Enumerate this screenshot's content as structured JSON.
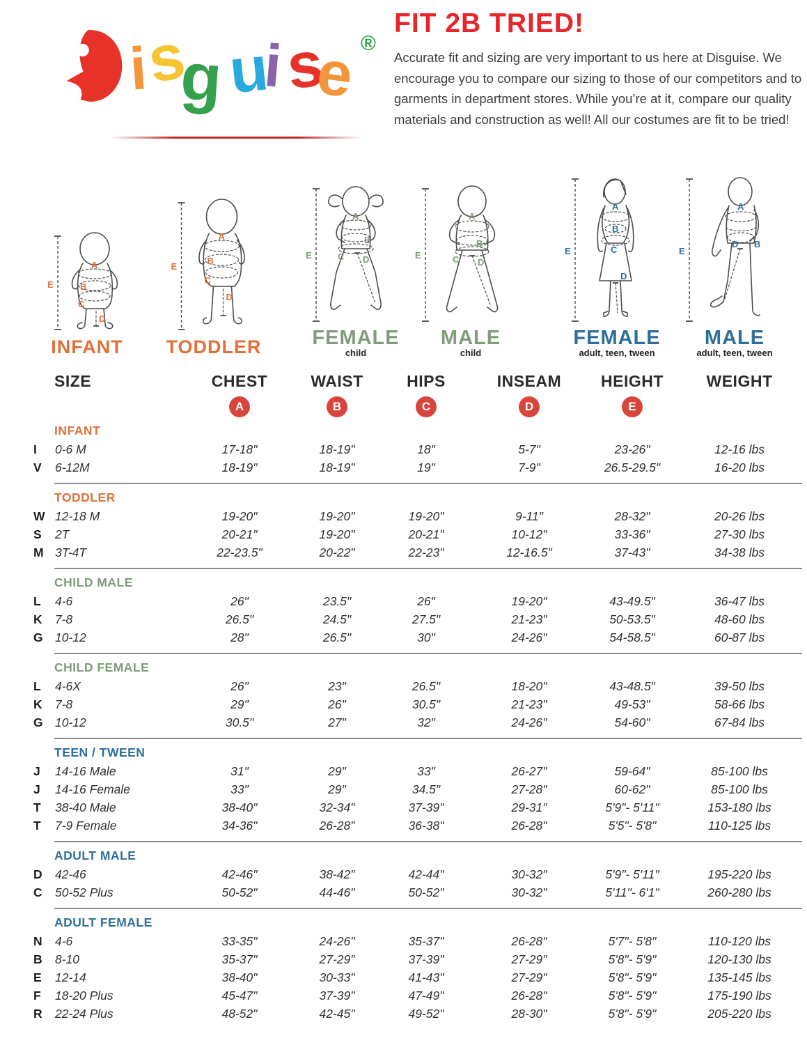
{
  "logo": {
    "letters": [
      {
        "ch": "D",
        "color": "#e63229"
      },
      {
        "ch": "i",
        "color": "#f2953b"
      },
      {
        "ch": "s",
        "color": "#f4c431"
      },
      {
        "ch": "g",
        "color": "#36a14c"
      },
      {
        "ch": "u",
        "color": "#2aa9e0"
      },
      {
        "ch": "i",
        "color": "#8a63ac"
      },
      {
        "ch": "s",
        "color": "#e63229"
      },
      {
        "ch": "e",
        "color": "#f2953b"
      }
    ],
    "registered": {
      "ch": "®",
      "color": "#36a14c"
    }
  },
  "intro": {
    "heading": "FIT 2B TRIED!",
    "heading_color": "#e8252b",
    "body": "Accurate fit and sizing are very important to us here at Disguise. We encourage you to compare our sizing to those of our competitors and to garments in department stores. While you’re at it, compare our quality materials and construction as well! All our costumes are fit to be tried!"
  },
  "figures": {
    "letters": {
      "a": "A",
      "b": "B",
      "c": "C",
      "d": "D",
      "e": "E"
    },
    "items": [
      {
        "name": "INFANT",
        "sub": "",
        "color": "#e0713a"
      },
      {
        "name": "TODDLER",
        "sub": "",
        "color": "#e0713a"
      },
      {
        "name": "FEMALE",
        "sub": "child",
        "color": "#7e9d78"
      },
      {
        "name": "MALE",
        "sub": "child",
        "color": "#7e9d78"
      },
      {
        "name": "FEMALE",
        "sub": "adult, teen, tween",
        "color": "#2e6f99"
      },
      {
        "name": "MALE",
        "sub": "adult, teen, tween",
        "color": "#2e6f99"
      }
    ]
  },
  "table": {
    "headers": [
      "SIZE",
      "CHEST",
      "WAIST",
      "HIPS",
      "INSEAM",
      "HEIGHT",
      "WEIGHT"
    ],
    "badges": [
      "A",
      "B",
      "C",
      "D",
      "E"
    ],
    "badge_color": "#d8453c",
    "sections": [
      {
        "heading": "INFANT",
        "color": "#e0713a",
        "rows": [
          [
            "I",
            "0-6 M",
            "17-18\"",
            "18-19\"",
            "18\"",
            "5-7\"",
            "23-26\"",
            "12-16 lbs"
          ],
          [
            "V",
            "6-12M",
            "18-19\"",
            "18-19\"",
            "19\"",
            "7-9\"",
            "26.5-29.5\"",
            "16-20 lbs"
          ]
        ]
      },
      {
        "heading": "TODDLER",
        "color": "#e0713a",
        "rows": [
          [
            "W",
            "12-18 M",
            "19-20\"",
            "19-20\"",
            "19-20\"",
            "9-11\"",
            "28-32\"",
            "20-26 lbs"
          ],
          [
            "S",
            "2T",
            "20-21\"",
            "19-20\"",
            "20-21\"",
            "10-12\"",
            "33-36\"",
            "27-30 lbs"
          ],
          [
            "M",
            "3T-4T",
            "22-23.5\"",
            "20-22\"",
            "22-23\"",
            "12-16.5\"",
            "37-43\"",
            "34-38 lbs"
          ]
        ]
      },
      {
        "heading": "CHILD MALE",
        "color": "#7e9d78",
        "rows": [
          [
            "L",
            "4-6",
            "26\"",
            "23.5\"",
            "26\"",
            "19-20\"",
            "43-49.5\"",
            "36-47 lbs"
          ],
          [
            "K",
            "7-8",
            "26.5\"",
            "24.5\"",
            "27.5\"",
            "21-23\"",
            "50-53.5\"",
            "48-60 lbs"
          ],
          [
            "G",
            "10-12",
            "28\"",
            "26.5\"",
            "30\"",
            "24-26\"",
            "54-58.5\"",
            "60-87 lbs"
          ]
        ]
      },
      {
        "heading": "CHILD FEMALE",
        "color": "#7e9d78",
        "rows": [
          [
            "L",
            "4-6X",
            "26\"",
            "23\"",
            "26.5\"",
            "18-20\"",
            "43-48.5\"",
            "39-50 lbs"
          ],
          [
            "K",
            "7-8",
            "29\"",
            "26\"",
            "30.5\"",
            "21-23\"",
            "49-53\"",
            "58-66 lbs"
          ],
          [
            "G",
            "10-12",
            "30.5\"",
            "27\"",
            "32\"",
            "24-26\"",
            "54-60\"",
            "67-84 lbs"
          ]
        ]
      },
      {
        "heading": "TEEN / TWEEN",
        "color": "#2e6f99",
        "rows": [
          [
            "J",
            "14-16 Male",
            "31\"",
            "29\"",
            "33\"",
            "26-27\"",
            "59-64\"",
            "85-100 lbs"
          ],
          [
            "J",
            "14-16 Female",
            "33\"",
            "29\"",
            "34.5\"",
            "27-28\"",
            "60-62\"",
            "85-100 lbs"
          ],
          [
            "T",
            "38-40 Male",
            "38-40\"",
            "32-34\"",
            "37-39\"",
            "29-31\"",
            "5'9\"- 5'11\"",
            "153-180 lbs"
          ],
          [
            "T",
            "7-9 Female",
            "34-36\"",
            "26-28\"",
            "36-38\"",
            "26-28\"",
            "5'5\"- 5'8\"",
            "110-125 lbs"
          ]
        ]
      },
      {
        "heading": "ADULT MALE",
        "color": "#2e6f99",
        "rows": [
          [
            "D",
            "42-46",
            "42-46\"",
            "38-42\"",
            "42-44\"",
            "30-32\"",
            "5'9\"- 5'11\"",
            "195-220 lbs"
          ],
          [
            "C",
            "50-52 Plus",
            "50-52\"",
            "44-46\"",
            "50-52\"",
            "30-32\"",
            "5'11\"- 6'1\"",
            "260-280 lbs"
          ]
        ]
      },
      {
        "heading": "ADULT FEMALE",
        "color": "#2e6f99",
        "rows": [
          [
            "N",
            "4-6",
            "33-35\"",
            "24-26\"",
            "35-37\"",
            "26-28\"",
            "5'7\"- 5'8\"",
            "110-120 lbs"
          ],
          [
            "B",
            "8-10",
            "35-37\"",
            "27-29\"",
            "37-39\"",
            "27-29\"",
            "5'8\"- 5'9\"",
            "120-130 lbs"
          ],
          [
            "E",
            "12-14",
            "38-40\"",
            "30-33\"",
            "41-43\"",
            "27-29\"",
            "5'8\"- 5'9\"",
            "135-145 lbs"
          ],
          [
            "F",
            "18-20 Plus",
            "45-47\"",
            "37-39\"",
            "47-49\"",
            "26-28\"",
            "5'8\"- 5'9\"",
            "175-190 lbs"
          ],
          [
            "R",
            "22-24 Plus",
            "48-52\"",
            "42-45\"",
            "49-52\"",
            "28-30\"",
            "5'8\"- 5'9\"",
            "205-220 lbs"
          ]
        ]
      }
    ]
  }
}
